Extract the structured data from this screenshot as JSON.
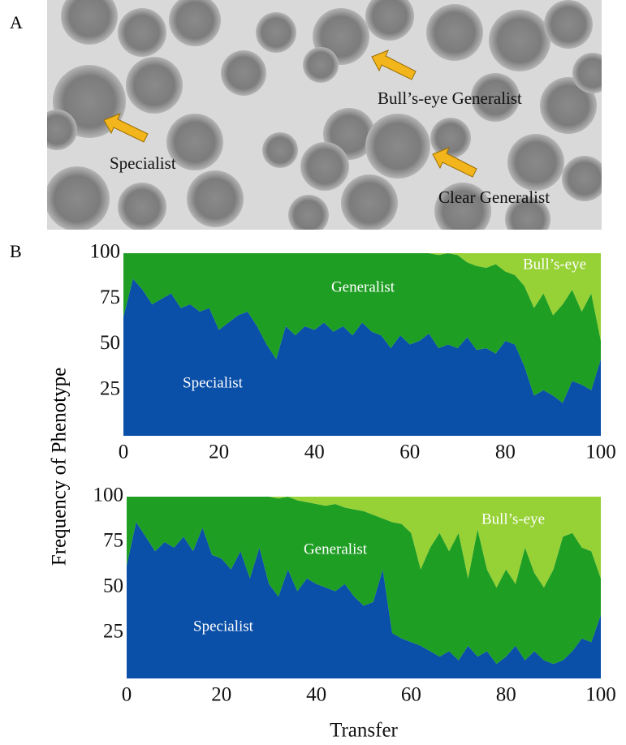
{
  "panel_labels": [
    "A",
    "B"
  ],
  "photo": {
    "annotations": [
      "Specialist",
      "Bull’s-eye Generalist",
      "Clear Generalist"
    ]
  },
  "y_label": "Frequency of Phenotype",
  "chart_data": [
    {
      "type": "stacked_area",
      "x": [
        0,
        2,
        4,
        6,
        8,
        10,
        12,
        14,
        16,
        18,
        20,
        22,
        24,
        26,
        28,
        30,
        32,
        34,
        36,
        38,
        40,
        42,
        44,
        46,
        48,
        50,
        52,
        54,
        56,
        58,
        60,
        62,
        64,
        66,
        68,
        70,
        72,
        74,
        76,
        78,
        80,
        82,
        84,
        86,
        88,
        90,
        92,
        94,
        96,
        98,
        100
      ],
      "series": [
        {
          "name": "Specialist",
          "color": "#0a4fa8",
          "values": [
            65,
            86,
            80,
            72,
            75,
            78,
            70,
            72,
            68,
            70,
            58,
            62,
            66,
            68,
            60,
            50,
            42,
            60,
            55,
            60,
            58,
            62,
            57,
            60,
            55,
            62,
            57,
            55,
            48,
            55,
            50,
            52,
            56,
            48,
            50,
            48,
            54,
            47,
            48,
            45,
            52,
            50,
            38,
            22,
            25,
            22,
            18,
            30,
            28,
            25,
            42
          ]
        },
        {
          "name": "Generalist",
          "color": "#1f9e24",
          "values": [
            35,
            14,
            20,
            28,
            25,
            22,
            30,
            28,
            32,
            30,
            42,
            38,
            34,
            32,
            40,
            50,
            58,
            40,
            45,
            40,
            42,
            38,
            43,
            40,
            45,
            38,
            43,
            45,
            52,
            45,
            50,
            48,
            44,
            51,
            50,
            51,
            41,
            46,
            44,
            49,
            38,
            38,
            44,
            48,
            53,
            44,
            54,
            50,
            40,
            53,
            10
          ]
        },
        {
          "name": "Bull’s-eye",
          "color": "#96d135",
          "values": [
            0,
            0,
            0,
            0,
            0,
            0,
            0,
            0,
            0,
            0,
            0,
            0,
            0,
            0,
            0,
            0,
            0,
            0,
            0,
            0,
            0,
            0,
            0,
            0,
            0,
            0,
            0,
            0,
            0,
            0,
            0,
            0,
            0,
            1,
            0,
            1,
            5,
            7,
            8,
            6,
            10,
            12,
            18,
            30,
            22,
            34,
            28,
            20,
            32,
            22,
            48
          ]
        }
      ],
      "xlim": [
        0,
        100
      ],
      "xticks": [
        0,
        20,
        40,
        60,
        80,
        100
      ],
      "ylim": [
        0,
        100
      ],
      "yticks": [
        25,
        50,
        75,
        100
      ]
    },
    {
      "type": "stacked_area",
      "x": [
        0,
        2,
        4,
        6,
        8,
        10,
        12,
        14,
        16,
        18,
        20,
        22,
        24,
        26,
        28,
        30,
        32,
        34,
        36,
        38,
        40,
        42,
        44,
        46,
        48,
        50,
        52,
        54,
        56,
        58,
        60,
        62,
        64,
        66,
        68,
        70,
        72,
        74,
        76,
        78,
        80,
        82,
        84,
        86,
        88,
        90,
        92,
        94,
        96,
        98,
        100
      ],
      "series": [
        {
          "name": "Specialist",
          "color": "#0a4fa8",
          "values": [
            62,
            86,
            78,
            70,
            75,
            72,
            78,
            70,
            83,
            68,
            66,
            60,
            70,
            55,
            72,
            52,
            45,
            60,
            48,
            55,
            52,
            50,
            48,
            52,
            45,
            40,
            42,
            60,
            25,
            22,
            20,
            18,
            15,
            12,
            15,
            10,
            18,
            12,
            15,
            8,
            12,
            18,
            10,
            15,
            10,
            8,
            10,
            15,
            22,
            20,
            35
          ]
        },
        {
          "name": "Generalist",
          "color": "#1f9e24",
          "values": [
            38,
            14,
            22,
            30,
            25,
            28,
            22,
            30,
            17,
            32,
            34,
            40,
            30,
            45,
            28,
            48,
            54,
            40,
            50,
            42,
            44,
            45,
            48,
            42,
            48,
            52,
            48,
            28,
            61,
            63,
            60,
            42,
            57,
            68,
            55,
            70,
            37,
            70,
            45,
            42,
            48,
            34,
            62,
            43,
            40,
            52,
            68,
            65,
            50,
            50,
            20
          ]
        },
        {
          "name": "Bull’s-eye",
          "color": "#96d135",
          "values": [
            0,
            0,
            0,
            0,
            0,
            0,
            0,
            0,
            0,
            0,
            0,
            0,
            0,
            0,
            0,
            0,
            1,
            0,
            2,
            3,
            4,
            5,
            4,
            6,
            7,
            8,
            10,
            12,
            14,
            15,
            20,
            40,
            28,
            20,
            30,
            20,
            45,
            18,
            40,
            50,
            40,
            48,
            28,
            42,
            50,
            40,
            22,
            20,
            28,
            30,
            45
          ]
        }
      ],
      "xlim": [
        0,
        100
      ],
      "xticks": [
        0,
        20,
        40,
        60,
        80,
        100
      ],
      "ylim": [
        0,
        100
      ],
      "yticks": [
        25,
        50,
        75,
        100
      ],
      "xlabel": "Transfer"
    }
  ]
}
